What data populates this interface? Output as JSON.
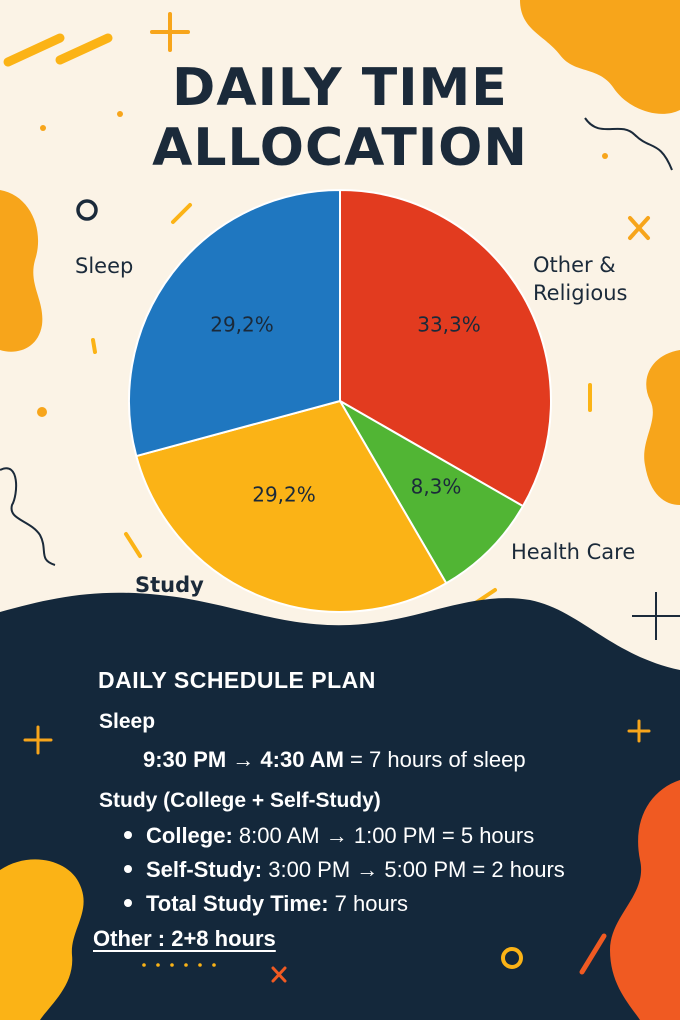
{
  "title_line1": "DAILY TIME",
  "title_line2": "ALLOCATION",
  "colors": {
    "background": "#fbf3e6",
    "navy": "#14283b",
    "blue": "#1f77c0",
    "red": "#e23b1f",
    "green": "#51b534",
    "yellow": "#fbb316",
    "orange_shape": "#f7a51b"
  },
  "chart_data": {
    "type": "pie",
    "title": "DAILY TIME ALLOCATION",
    "slices": [
      {
        "label": "Other & Religious",
        "value": 33.3,
        "value_label": "33,3%",
        "color": "#e23b1f"
      },
      {
        "label": "Health Care",
        "value": 8.3,
        "value_label": "8,3%",
        "color": "#51b534"
      },
      {
        "label": "Study",
        "value": 29.2,
        "value_label": "29,2%",
        "color": "#fbb316"
      },
      {
        "label": "Sleep",
        "value": 29.2,
        "value_label": "29,2%",
        "color": "#1f77c0"
      }
    ]
  },
  "labels": {
    "sleep": "Sleep",
    "other_line1": "Other &",
    "other_line2": "Religious",
    "health": "Health Care",
    "study": "Study"
  },
  "schedule": {
    "heading": "DAILY SCHEDULE PLAN",
    "sleep_title": "Sleep",
    "sleep_start": "9:30 PM",
    "sleep_arrow": " → ",
    "sleep_end": "4:30 AM",
    "sleep_rest": " = 7 hours of sleep",
    "study_title": "Study (College + Self-Study)",
    "college_label": "College:",
    "college_rest": " 8:00 AM → 1:00 PM = 5 hours",
    "self_label": "Self-Study:",
    "self_rest": " 3:00 PM → 5:00 PM = 2 hours",
    "total_label": "Total Study Time:",
    "total_rest": " 7 hours",
    "other": "Other : 2+8 hours"
  }
}
